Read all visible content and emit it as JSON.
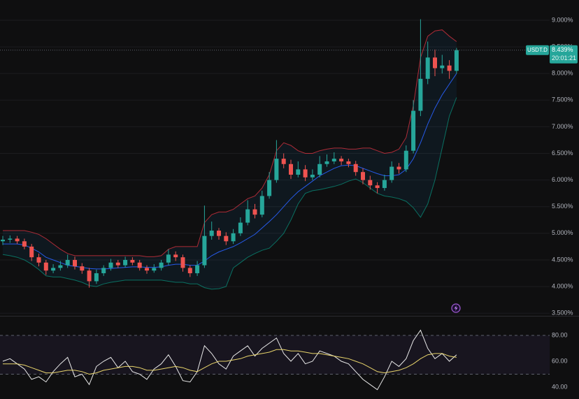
{
  "chart_data": [
    {
      "type": "candlestick",
      "open": [
        4.85,
        4.88,
        4.9,
        4.85,
        4.75,
        4.55,
        4.45,
        4.3,
        4.35,
        4.4,
        4.5,
        4.38,
        4.3,
        4.1,
        4.25,
        4.35,
        4.45,
        4.4,
        4.5,
        4.45,
        4.35,
        4.3,
        4.35,
        4.45,
        4.6,
        4.55,
        4.35,
        4.25,
        4.4,
        4.95,
        5.05,
        4.95,
        4.85,
        5.0,
        5.2,
        5.45,
        5.35,
        5.7,
        6.0,
        6.4,
        6.3,
        6.1,
        6.2,
        6.05,
        6.1,
        6.3,
        6.35,
        6.4,
        6.35,
        6.3,
        6.15,
        6.0,
        5.9,
        5.85,
        6.0,
        6.25,
        6.2,
        6.55,
        7.3,
        7.9,
        8.3,
        8.1,
        8.15,
        8.05
      ],
      "high": [
        4.95,
        4.96,
        4.95,
        4.9,
        4.8,
        4.62,
        4.5,
        4.42,
        4.48,
        4.6,
        4.56,
        4.44,
        4.35,
        4.32,
        4.4,
        4.52,
        4.5,
        4.56,
        4.55,
        4.5,
        4.4,
        4.42,
        4.5,
        4.7,
        4.66,
        4.6,
        4.4,
        4.48,
        5.52,
        5.22,
        5.1,
        5.02,
        5.08,
        5.3,
        5.62,
        5.55,
        5.8,
        6.15,
        6.75,
        6.5,
        6.38,
        6.35,
        6.28,
        6.2,
        6.45,
        6.48,
        6.52,
        6.45,
        6.4,
        6.36,
        6.22,
        6.08,
        5.96,
        6.1,
        6.35,
        6.32,
        6.65,
        7.5,
        9.02,
        8.6,
        8.45,
        8.35,
        8.25,
        8.48
      ],
      "low": [
        4.78,
        4.82,
        4.8,
        4.7,
        4.48,
        4.38,
        4.22,
        4.25,
        4.3,
        4.35,
        4.32,
        4.24,
        3.98,
        4.05,
        4.2,
        4.3,
        4.35,
        4.36,
        4.4,
        4.3,
        4.24,
        4.26,
        4.3,
        4.4,
        4.48,
        4.28,
        4.18,
        4.2,
        4.35,
        4.88,
        4.88,
        4.78,
        4.8,
        4.95,
        5.15,
        5.28,
        5.3,
        5.65,
        5.95,
        6.22,
        6.02,
        6.05,
        5.98,
        6.0,
        6.05,
        6.25,
        6.3,
        6.28,
        6.24,
        6.08,
        5.92,
        5.82,
        5.75,
        5.8,
        5.95,
        6.12,
        6.15,
        6.5,
        7.2,
        7.8,
        7.95,
        8.0,
        7.9,
        8.0
      ],
      "close": [
        4.88,
        4.9,
        4.85,
        4.75,
        4.55,
        4.45,
        4.3,
        4.35,
        4.4,
        4.5,
        4.38,
        4.3,
        4.1,
        4.25,
        4.35,
        4.45,
        4.4,
        4.5,
        4.45,
        4.35,
        4.3,
        4.35,
        4.45,
        4.6,
        4.55,
        4.35,
        4.25,
        4.4,
        4.95,
        5.05,
        4.95,
        4.85,
        5.0,
        5.2,
        5.45,
        5.35,
        5.7,
        6.0,
        6.4,
        6.3,
        6.1,
        6.2,
        6.05,
        6.1,
        6.3,
        6.35,
        6.4,
        6.35,
        6.3,
        6.15,
        6.0,
        5.9,
        5.85,
        6.0,
        6.25,
        6.2,
        6.55,
        7.3,
        7.9,
        8.3,
        8.1,
        8.15,
        8.05,
        8.439
      ],
      "up_color": "#26a69a",
      "down_color": "#ef5350",
      "overlays": [
        {
          "color": "#f23645",
          "values": [
            5.05,
            5.05,
            5.05,
            5.05,
            5.02,
            4.98,
            4.9,
            4.8,
            4.7,
            4.62,
            4.58,
            4.58,
            4.58,
            4.58,
            4.58,
            4.58,
            4.58,
            4.58,
            4.58,
            4.58,
            4.56,
            4.56,
            4.58,
            4.7,
            4.75,
            4.75,
            4.75,
            4.75,
            5.2,
            5.35,
            5.4,
            5.4,
            5.45,
            5.55,
            5.65,
            5.7,
            5.85,
            6.1,
            6.55,
            6.7,
            6.65,
            6.55,
            6.5,
            6.5,
            6.55,
            6.58,
            6.6,
            6.6,
            6.58,
            6.58,
            6.6,
            6.6,
            6.55,
            6.5,
            6.52,
            6.58,
            6.8,
            7.4,
            8.3,
            8.7,
            8.8,
            8.82,
            8.7,
            8.6
          ]
        },
        {
          "color": "#2962ff",
          "values": [
            4.8,
            4.8,
            4.8,
            4.78,
            4.72,
            4.65,
            4.55,
            4.5,
            4.45,
            4.4,
            4.38,
            4.36,
            4.34,
            4.33,
            4.33,
            4.34,
            4.35,
            4.36,
            4.37,
            4.37,
            4.36,
            4.36,
            4.37,
            4.4,
            4.42,
            4.42,
            4.4,
            4.4,
            4.48,
            4.58,
            4.65,
            4.7,
            4.75,
            4.82,
            4.9,
            4.98,
            5.1,
            5.22,
            5.35,
            5.5,
            5.65,
            5.78,
            5.88,
            5.98,
            6.08,
            6.15,
            6.22,
            6.27,
            6.28,
            6.27,
            6.22,
            6.17,
            6.12,
            6.08,
            6.08,
            6.1,
            6.2,
            6.4,
            6.7,
            7.05,
            7.35,
            7.6,
            7.8,
            8.0
          ]
        },
        {
          "color": "#089981",
          "values": [
            4.6,
            4.58,
            4.55,
            4.5,
            4.42,
            4.32,
            4.2,
            4.18,
            4.18,
            4.15,
            4.12,
            4.08,
            4.02,
            4.0,
            4.05,
            4.08,
            4.1,
            4.12,
            4.12,
            4.12,
            4.12,
            4.12,
            4.12,
            4.1,
            4.08,
            4.08,
            4.05,
            4.05,
            3.98,
            3.95,
            3.96,
            4.0,
            4.35,
            4.45,
            4.55,
            4.62,
            4.68,
            4.72,
            4.85,
            5.0,
            5.25,
            5.55,
            5.75,
            5.8,
            5.82,
            5.85,
            5.88,
            5.92,
            5.98,
            6.02,
            5.95,
            5.85,
            5.75,
            5.7,
            5.68,
            5.65,
            5.6,
            5.48,
            5.3,
            5.55,
            6.0,
            6.6,
            7.2,
            7.55
          ]
        }
      ],
      "band_fill": "rgba(33,150,243,0.07)",
      "ylim": [
        3.45,
        9.38
      ],
      "yticks": [
        {
          "value": 9,
          "label": "9.000%"
        },
        {
          "value": 8.5,
          "label": "8.500%"
        },
        {
          "value": 8,
          "label": "8.000%"
        },
        {
          "value": 7.5,
          "label": "7.500%"
        },
        {
          "value": 7,
          "label": "7.000%"
        },
        {
          "value": 6.5,
          "label": "6.500%"
        },
        {
          "value": 6,
          "label": "6.000%"
        },
        {
          "value": 5.5,
          "label": "5.500%"
        },
        {
          "value": 5,
          "label": "5.000%"
        },
        {
          "value": 4.5,
          "label": "4.500%"
        },
        {
          "value": 4,
          "label": "4.000%"
        },
        {
          "value": 3.5,
          "label": "3.500%"
        }
      ],
      "grid": true,
      "last_price": {
        "symbol": "USDT.D",
        "value": 8.439,
        "label": "8.439%",
        "time": "20:01:21",
        "color": "#26a69a"
      }
    },
    {
      "type": "line",
      "series": [
        {
          "color": "#e8e8e8",
          "values": [
            60,
            62,
            58,
            54,
            46,
            48,
            44,
            52,
            58,
            63,
            48,
            50,
            42,
            56,
            60,
            63,
            55,
            60,
            52,
            50,
            46,
            54,
            58,
            65,
            56,
            45,
            44,
            52,
            72,
            66,
            58,
            54,
            64,
            68,
            72,
            64,
            70,
            74,
            78,
            66,
            60,
            66,
            58,
            60,
            68,
            66,
            64,
            60,
            58,
            52,
            46,
            42,
            38,
            48,
            60,
            56,
            62,
            76,
            84,
            70,
            62,
            66,
            60,
            65
          ]
        },
        {
          "color": "#e9d56b",
          "values": [
            58,
            58,
            58,
            57,
            55,
            53,
            51,
            51,
            52,
            53,
            53,
            52,
            50,
            51,
            53,
            54,
            55,
            56,
            56,
            55,
            53,
            53,
            54,
            55,
            56,
            55,
            53,
            52,
            55,
            58,
            60,
            60,
            61,
            62,
            64,
            65,
            66,
            67,
            69,
            69,
            68,
            68,
            67,
            66,
            66,
            65,
            64,
            63,
            62,
            60,
            58,
            55,
            52,
            51,
            52,
            53,
            55,
            58,
            62,
            65,
            66,
            66,
            64,
            63
          ]
        }
      ],
      "bands": [
        80,
        50
      ],
      "ylim": [
        33.5,
        92.97
      ],
      "yticks": [
        {
          "value": 80,
          "label": "80.00"
        },
        {
          "value": 60,
          "label": "60.00"
        },
        {
          "value": 40,
          "label": "40.00"
        }
      ]
    }
  ]
}
